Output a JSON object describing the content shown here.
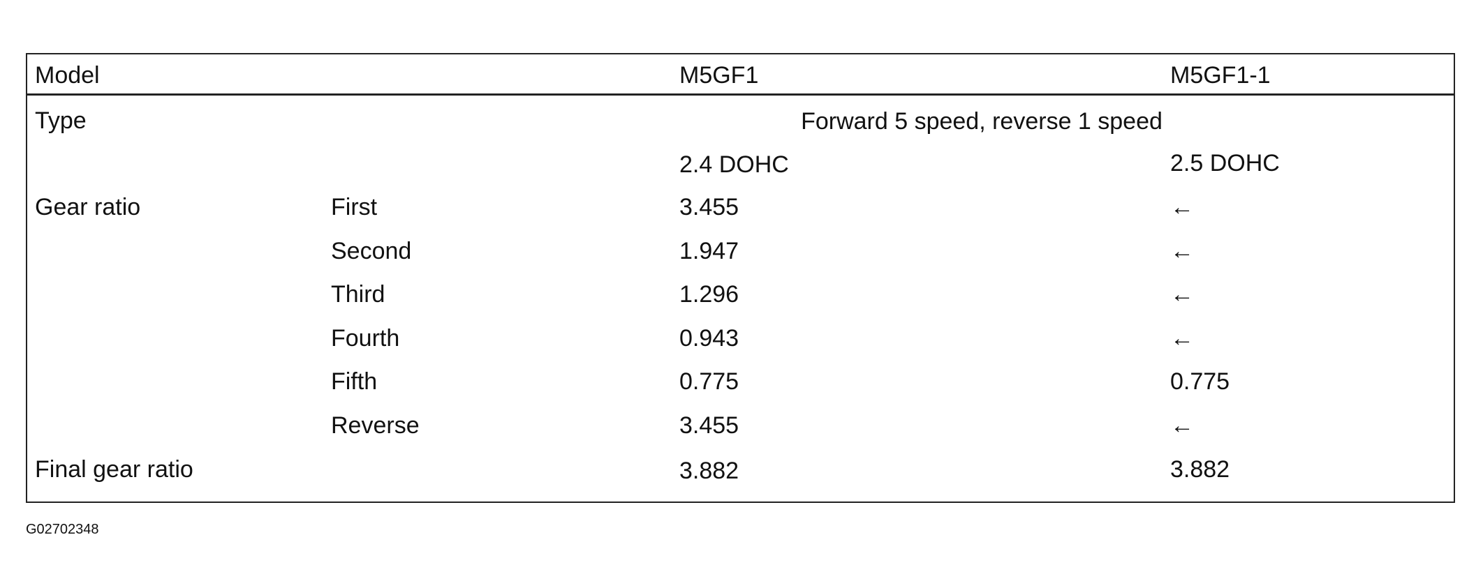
{
  "table": {
    "header": [
      "Model",
      "M5GF1",
      "M5GF1-1"
    ],
    "type_row": {
      "label": "Type",
      "value": "Forward 5 speed, reverse 1 speed"
    },
    "engine_row": [
      "2.4 DOHC",
      "2.5 DOHC"
    ],
    "gear_ratio": {
      "label": "Gear ratio",
      "rows": [
        [
          "First",
          "3.455",
          "←"
        ],
        [
          "Second",
          "1.947",
          "←"
        ],
        [
          "Third",
          "1.296",
          "←"
        ],
        [
          "Fourth",
          "0.943",
          "←"
        ],
        [
          "Fifth",
          "0.775",
          "0.775"
        ],
        [
          "Reverse",
          "3.455",
          "←"
        ]
      ]
    },
    "final_gear_ratio": [
      "Final gear ratio",
      "3.882",
      "3.882"
    ]
  },
  "figure_id": "G02702348"
}
